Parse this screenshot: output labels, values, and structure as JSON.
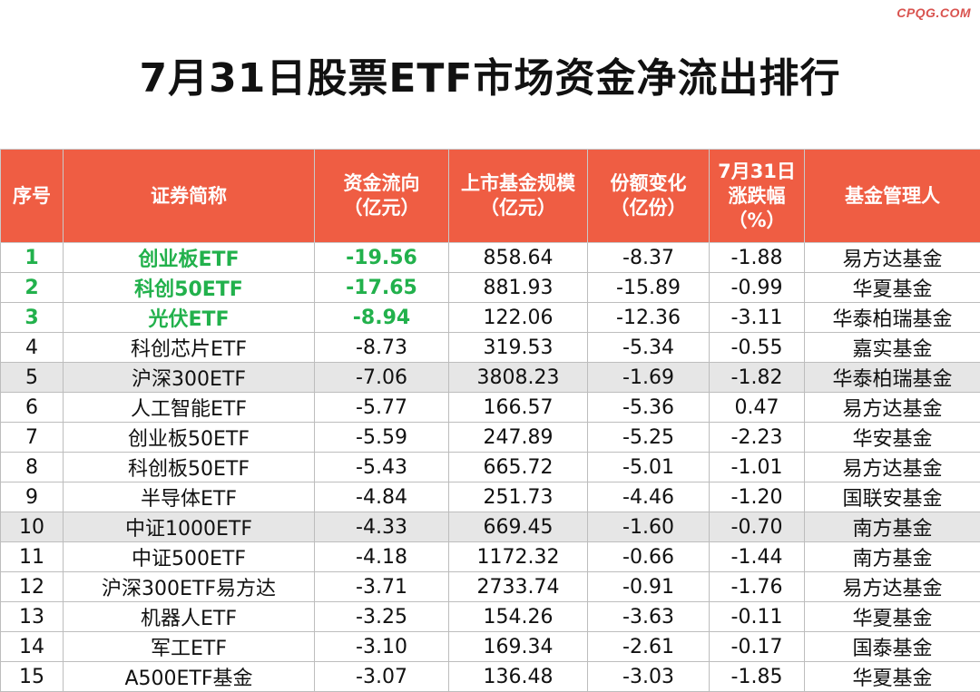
{
  "watermark": "CPQG.COM",
  "title": "7月31日股票ETF市场资金净流出排行",
  "headers": {
    "rank": "序号",
    "name": "证券简称",
    "flow_l1": "资金流向",
    "flow_l2": "（亿元）",
    "scale_l1": "上市基金规模",
    "scale_l2": "（亿元）",
    "share_l1": "份额变化",
    "share_l2": "（亿份）",
    "chg_l1": "7月31日",
    "chg_l2": "涨跌幅",
    "chg_l3": "（%）",
    "manager": "基金管理人"
  },
  "colors": {
    "header_bg": "#ef5d43",
    "highlight_text": "#22b14c",
    "shaded_row": "#e6e6e6",
    "watermark": "#d9534f"
  },
  "rows": [
    {
      "rank": "1",
      "name": "创业板ETF",
      "flow": "-19.56",
      "scale": "858.64",
      "share": "-8.37",
      "chg": "-1.88",
      "manager": "易方达基金"
    },
    {
      "rank": "2",
      "name": "科创50ETF",
      "flow": "-17.65",
      "scale": "881.93",
      "share": "-15.89",
      "chg": "-0.99",
      "manager": "华夏基金"
    },
    {
      "rank": "3",
      "name": "光伏ETF",
      "flow": "-8.94",
      "scale": "122.06",
      "share": "-12.36",
      "chg": "-3.11",
      "manager": "华泰柏瑞基金"
    },
    {
      "rank": "4",
      "name": "科创芯片ETF",
      "flow": "-8.73",
      "scale": "319.53",
      "share": "-5.34",
      "chg": "-0.55",
      "manager": "嘉实基金"
    },
    {
      "rank": "5",
      "name": "沪深300ETF",
      "flow": "-7.06",
      "scale": "3808.23",
      "share": "-1.69",
      "chg": "-1.82",
      "manager": "华泰柏瑞基金"
    },
    {
      "rank": "6",
      "name": "人工智能ETF",
      "flow": "-5.77",
      "scale": "166.57",
      "share": "-5.36",
      "chg": "0.47",
      "manager": "易方达基金"
    },
    {
      "rank": "7",
      "name": "创业板50ETF",
      "flow": "-5.59",
      "scale": "247.89",
      "share": "-5.25",
      "chg": "-2.23",
      "manager": "华安基金"
    },
    {
      "rank": "8",
      "name": "科创板50ETF",
      "flow": "-5.43",
      "scale": "665.72",
      "share": "-5.01",
      "chg": "-1.01",
      "manager": "易方达基金"
    },
    {
      "rank": "9",
      "name": "半导体ETF",
      "flow": "-4.84",
      "scale": "251.73",
      "share": "-4.46",
      "chg": "-1.20",
      "manager": "国联安基金"
    },
    {
      "rank": "10",
      "name": "中证1000ETF",
      "flow": "-4.33",
      "scale": "669.45",
      "share": "-1.60",
      "chg": "-0.70",
      "manager": "南方基金"
    },
    {
      "rank": "11",
      "name": "中证500ETF",
      "flow": "-4.18",
      "scale": "1172.32",
      "share": "-0.66",
      "chg": "-1.44",
      "manager": "南方基金"
    },
    {
      "rank": "12",
      "name": "沪深300ETF易方达",
      "flow": "-3.71",
      "scale": "2733.74",
      "share": "-0.91",
      "chg": "-1.76",
      "manager": "易方达基金"
    },
    {
      "rank": "13",
      "name": "机器人ETF",
      "flow": "-3.25",
      "scale": "154.26",
      "share": "-3.63",
      "chg": "-0.11",
      "manager": "华夏基金"
    },
    {
      "rank": "14",
      "name": "军工ETF",
      "flow": "-3.10",
      "scale": "169.34",
      "share": "-2.61",
      "chg": "-0.17",
      "manager": "国泰基金"
    },
    {
      "rank": "15",
      "name": "A500ETF基金",
      "flow": "-3.07",
      "scale": "136.48",
      "share": "-3.03",
      "chg": "-1.85",
      "manager": "华夏基金"
    }
  ]
}
